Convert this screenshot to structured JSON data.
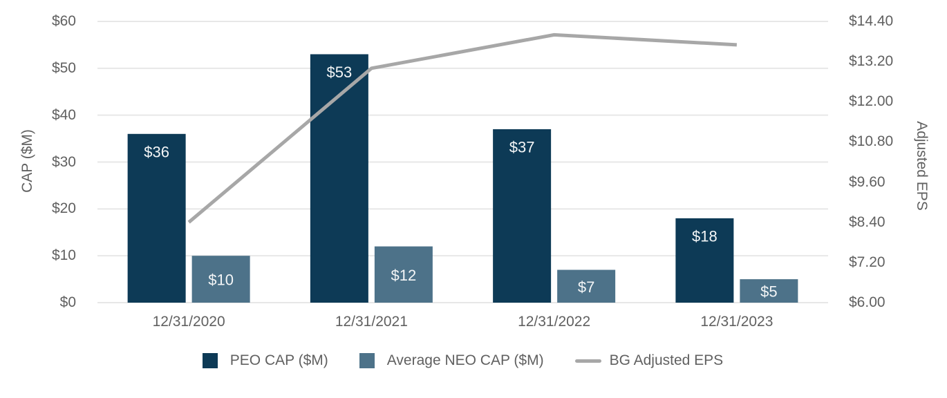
{
  "chart_data": {
    "type": "combo-bar-line",
    "categories": [
      "12/31/2020",
      "12/31/2021",
      "12/31/2022",
      "12/31/2023"
    ],
    "series": [
      {
        "name": "PEO CAP ($M)",
        "type": "bar",
        "axis": "left",
        "values": [
          36,
          53,
          37,
          18
        ],
        "data_labels": [
          "$36",
          "$53",
          "$37",
          "$18"
        ],
        "label_placement": "inside-top",
        "color": "#0d3a56"
      },
      {
        "name": "Average NEO CAP ($M)",
        "type": "bar",
        "axis": "left",
        "values": [
          10,
          12,
          7,
          5
        ],
        "data_labels": [
          "$10",
          "$12",
          "$7",
          "$5"
        ],
        "label_placement": "inside-center",
        "color": "#4d7289"
      },
      {
        "name": "BG Adjusted EPS",
        "type": "line",
        "axis": "right",
        "values": [
          8.4,
          13.0,
          14.0,
          13.7
        ],
        "color": "#a7a7a7"
      }
    ],
    "left_axis": {
      "label": "CAP ($M)",
      "min": 0,
      "max": 60,
      "ticks": [
        "$0",
        "$10",
        "$20",
        "$30",
        "$40",
        "$50",
        "$60"
      ]
    },
    "right_axis": {
      "label": "Adjusted EPS",
      "min": 6,
      "max": 14.4,
      "ticks": [
        "$6.00",
        "$7.20",
        "$8.40",
        "$9.60",
        "$10.80",
        "$12.00",
        "$13.20",
        "$14.40"
      ]
    },
    "grid": true,
    "legend_position": "bottom",
    "colors": {
      "grid_line": "#e7e7e7",
      "axis_text": "#606060",
      "bar_label_text": "#f4f6f7",
      "background": "#ffffff"
    }
  }
}
